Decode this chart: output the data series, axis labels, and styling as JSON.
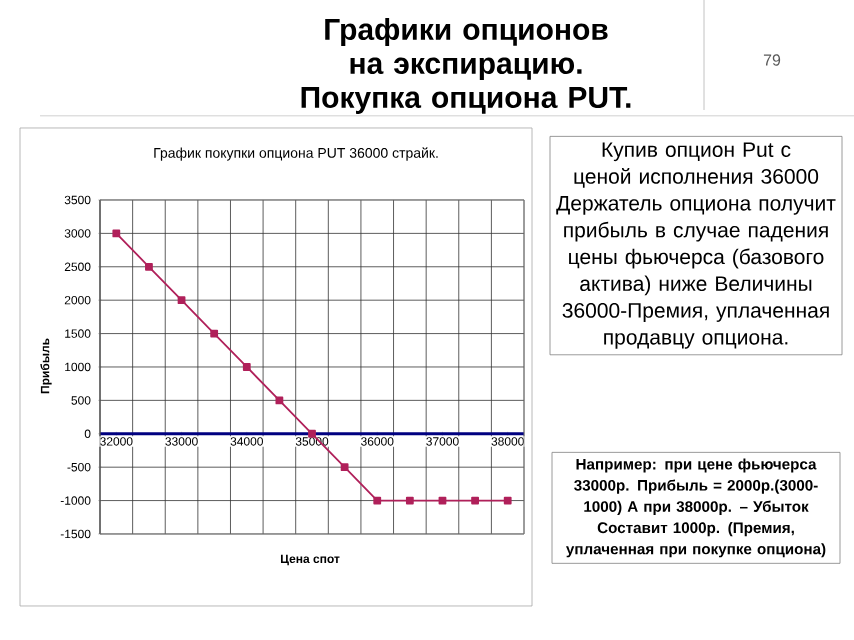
{
  "chart_data": {
    "type": "line",
    "title": "Графики опционов на экспирацию. Покупка опциона PUT.",
    "subtitle": "График покупки опциона PUT  36000 страйк.",
    "xlabel": "Цена спот",
    "ylabel": "Прибыль",
    "categories": [
      "32000",
      null,
      "33000",
      null,
      "34000",
      null,
      "35000",
      null,
      "36000",
      null,
      "37000",
      null,
      "38000"
    ],
    "series": [
      {
        "color": "#b0205a",
        "values": [
          3000,
          2500,
          2000,
          1500,
          1000,
          500,
          0,
          -500,
          -1000,
          -1000,
          -1000,
          -1000,
          -1000
        ]
      }
    ],
    "ylim": [
      -1500,
      3500
    ],
    "yticks": [
      -1500,
      -1000,
      -500,
      0,
      500,
      1000,
      1500,
      2000,
      2500,
      3000,
      3500
    ],
    "grid": true,
    "marker": "square",
    "line_style": "solid",
    "annotations": [
      "79",
      "Купив опцион Put с ценой исполнения 36000 Держатель опциона получит прибыль в случае падения цены фьючерса (базового актива) ниже Величины 36000-Премия, уплаченная продавцу опциона.",
      "Например: при цене фьючерса 33000р. Прибыль = 2000р.(3000-1000) А при 38000р. – Убыток Составит 1000р. (Премия, уплаченная при покупке опциона)"
    ]
  }
}
